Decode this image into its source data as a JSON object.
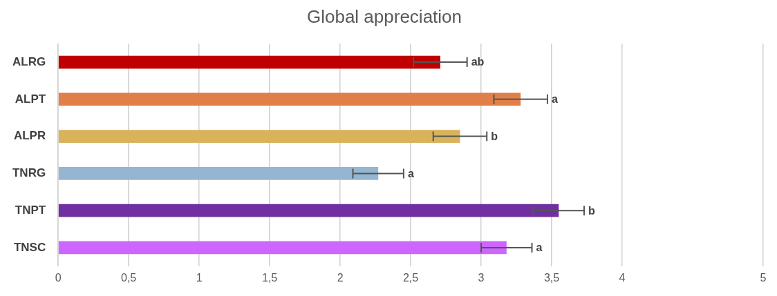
{
  "chart_data": {
    "type": "bar",
    "orientation": "horizontal",
    "title": "Global appreciation",
    "categories": [
      "ALRG",
      "ALPT",
      "ALPR",
      "TNRG",
      "TNPT",
      "TNSC"
    ],
    "values": [
      2.71,
      3.28,
      2.85,
      2.27,
      3.55,
      3.18
    ],
    "colors": [
      "#c00000",
      "#e07f47",
      "#d9b35c",
      "#94b6d2",
      "#7030a0",
      "#cc66ff"
    ],
    "errors": [
      0.19,
      0.19,
      0.19,
      0.18,
      0.18,
      0.18
    ],
    "xlim": [
      0,
      5
    ],
    "xticks": [
      0,
      {
        "value": 0.5,
        "label": "0,5"
      },
      1,
      {
        "value": 1.5,
        "label": "1,5"
      },
      2,
      {
        "value": 2.5,
        "label": "2,5"
      },
      3,
      {
        "value": 3.5,
        "label": "3,5"
      },
      4,
      5
    ],
    "grid": "x",
    "annotations": [
      {
        "text": "ab",
        "x": 2.9,
        "y": "ALRG"
      },
      {
        "text": "a",
        "x": 3.47,
        "y": "ALPT"
      },
      {
        "text": "b",
        "x": 3.04,
        "y": "ALPR"
      },
      {
        "text": "a",
        "x": 2.45,
        "y": "TNRG"
      },
      {
        "text": "b",
        "x": 3.73,
        "y": "TNPT"
      },
      {
        "text": "a",
        "x": 3.36,
        "y": "TNSC"
      }
    ]
  }
}
